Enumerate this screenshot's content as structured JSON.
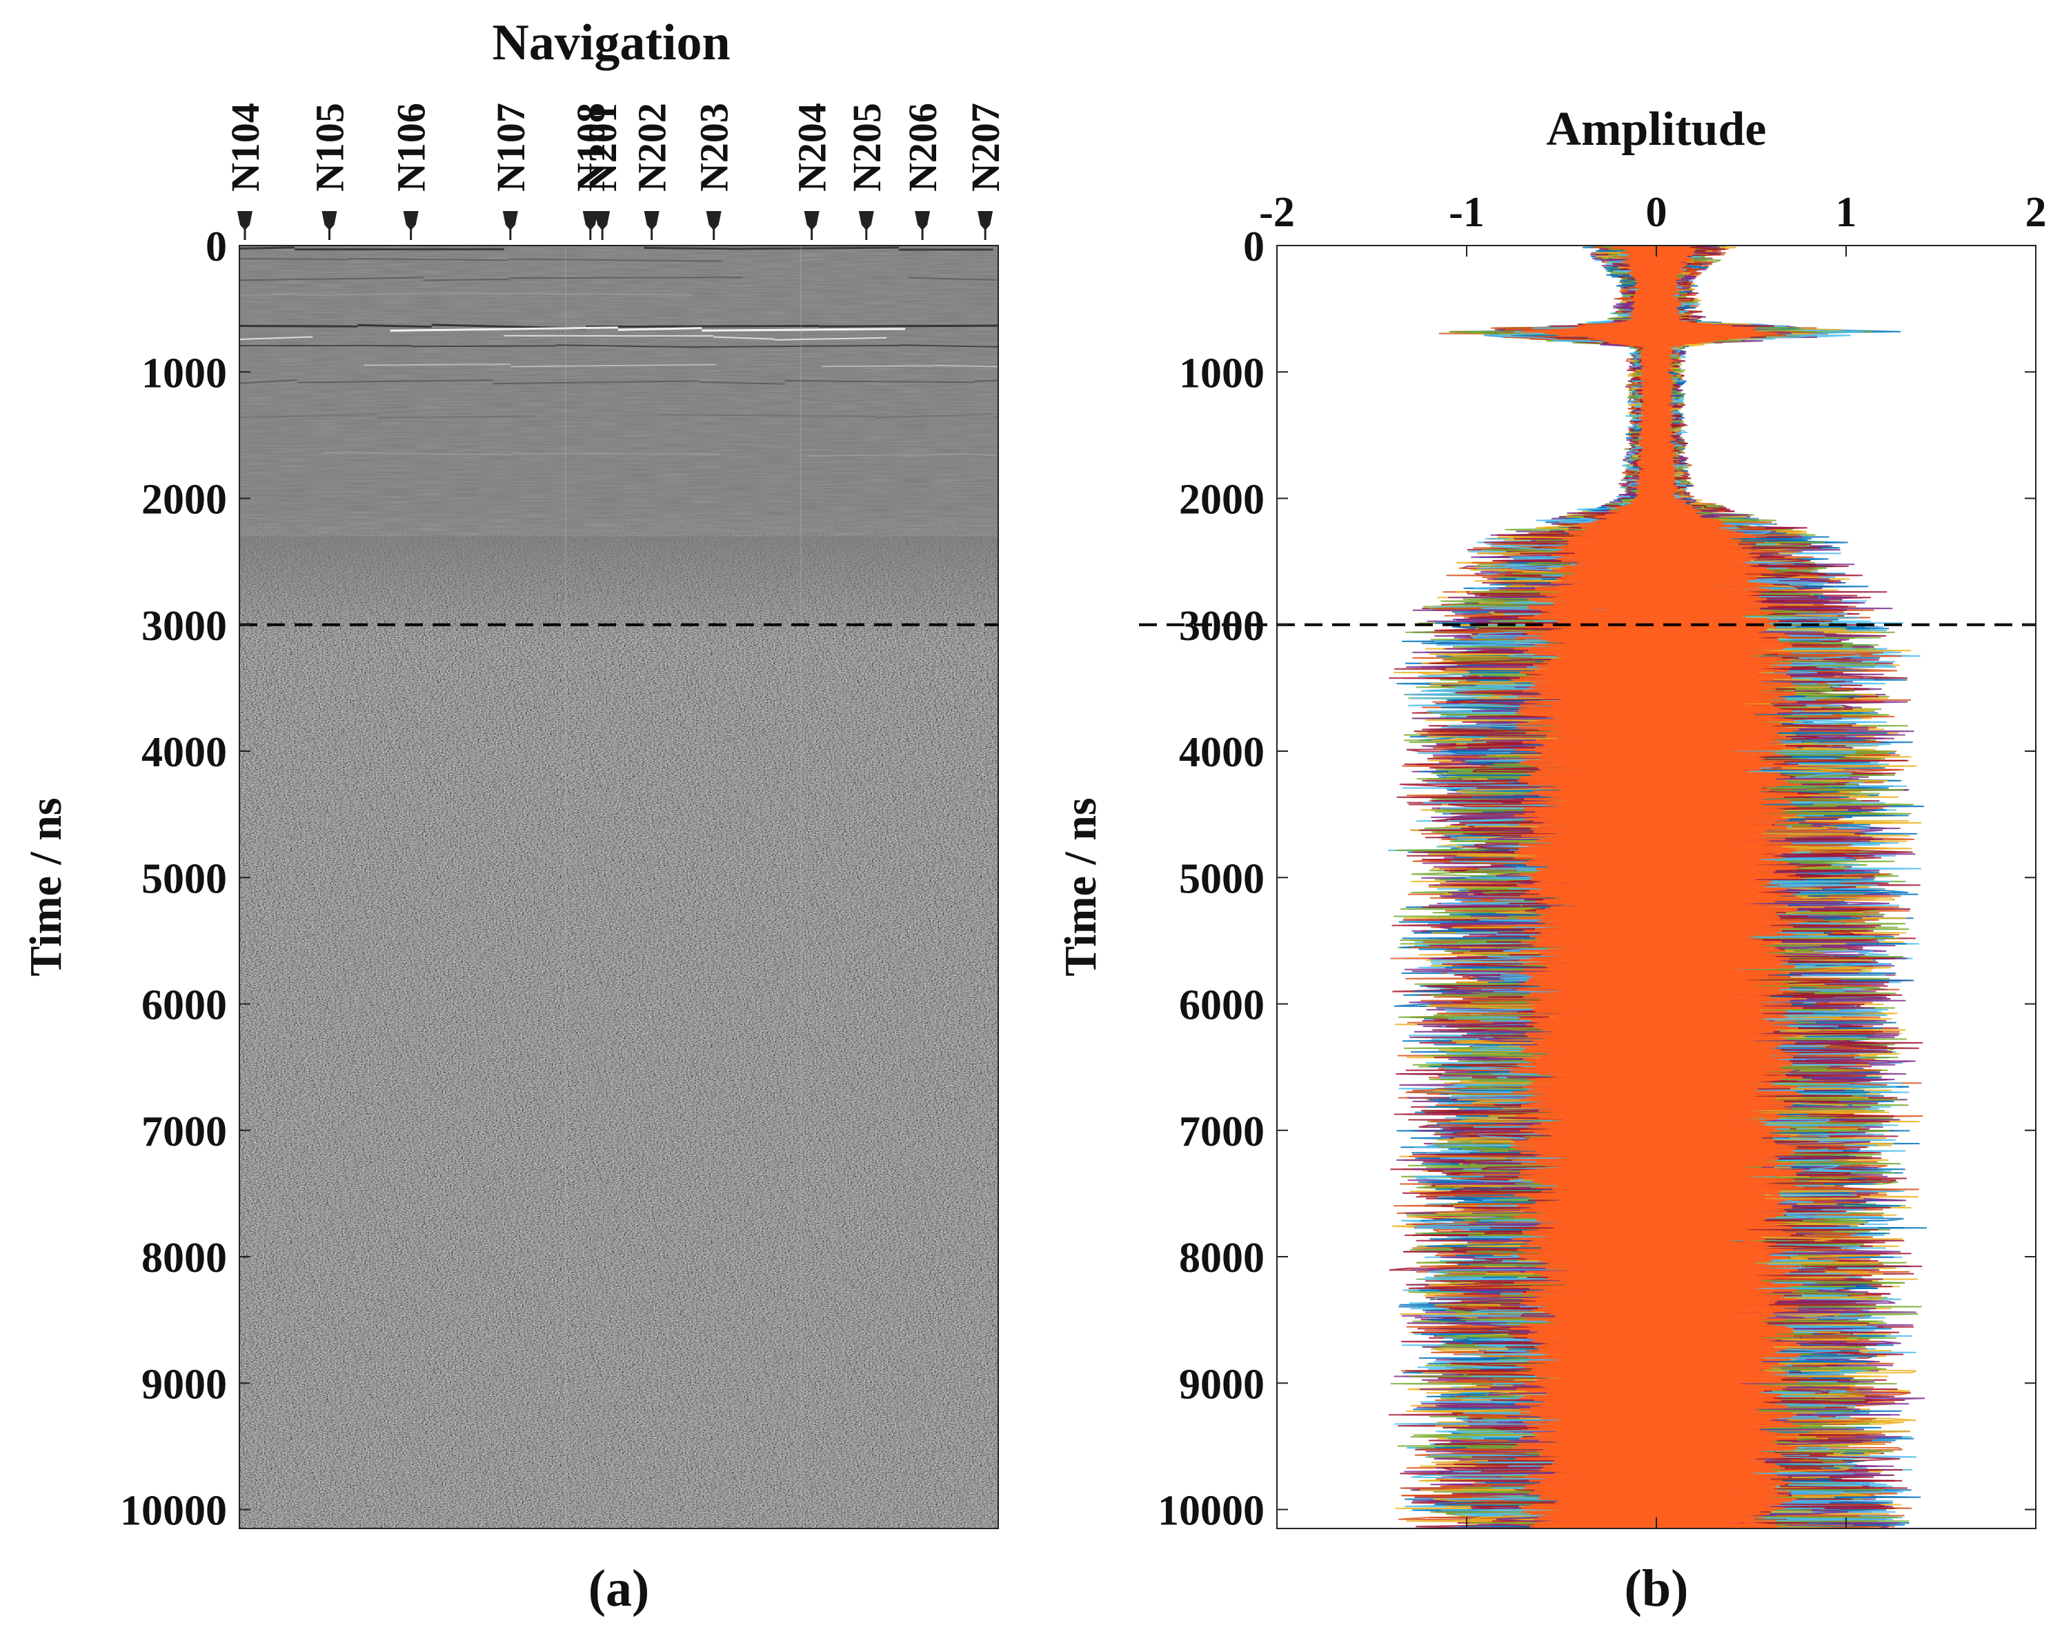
{
  "chart_data": [
    {
      "panel": "(a)",
      "type": "heatmap",
      "title": "Navigation",
      "xlabel": "",
      "ylabel": "Time / ns",
      "ylim": [
        0,
        10150
      ],
      "y_ticks": [
        0,
        1000,
        2000,
        3000,
        4000,
        5000,
        6000,
        7000,
        8000,
        9000,
        10000
      ],
      "navigation_points": [
        {
          "name": "N104",
          "pos": 0.0
        },
        {
          "name": "N105",
          "pos": 0.113
        },
        {
          "name": "N106",
          "pos": 0.222
        },
        {
          "name": "N107",
          "pos": 0.355
        },
        {
          "name": "N108",
          "pos": 0.462
        },
        {
          "name": "N201",
          "pos": 0.478
        },
        {
          "name": "N202",
          "pos": 0.544
        },
        {
          "name": "N203",
          "pos": 0.627
        },
        {
          "name": "N204",
          "pos": 0.758
        },
        {
          "name": "N205",
          "pos": 0.831
        },
        {
          "name": "N206",
          "pos": 0.906
        },
        {
          "name": "N207",
          "pos": 0.99
        }
      ],
      "dashed_line_y": 3000,
      "colormap": "grayscale",
      "description_regions": [
        {
          "from": 0,
          "to": 2200,
          "texture": "smooth gray with horizontal banding"
        },
        {
          "from": 2200,
          "to": 10150,
          "texture": "dense random noise"
        }
      ]
    },
    {
      "panel": "(b)",
      "type": "line",
      "title": "Amplitude",
      "xlabel": "Amplitude",
      "ylabel": "Time / ns",
      "xlim": [
        -2,
        2
      ],
      "ylim": [
        0,
        10150
      ],
      "x_ticks": [
        -2,
        -1,
        0,
        1,
        2
      ],
      "y_ticks": [
        0,
        1000,
        2000,
        3000,
        4000,
        5000,
        6000,
        7000,
        8000,
        9000,
        10000
      ],
      "dashed_line_y": 3000,
      "series_colors": [
        "#0072BD",
        "#D95319",
        "#EDB120",
        "#7E2F8E",
        "#77AC30",
        "#4DBEEE",
        "#A2142F"
      ],
      "foreground_color": "#FF5F1F",
      "amplitude_envelope": [
        {
          "t": 0,
          "amp": 0.4
        },
        {
          "t": 300,
          "amp": 0.2
        },
        {
          "t": 600,
          "amp": 0.25
        },
        {
          "t": 680,
          "amp": 1.3
        },
        {
          "t": 800,
          "amp": 0.15
        },
        {
          "t": 1500,
          "amp": 0.15
        },
        {
          "t": 2000,
          "amp": 0.2
        },
        {
          "t": 2300,
          "amp": 0.9
        },
        {
          "t": 2600,
          "amp": 1.05
        },
        {
          "t": 3000,
          "amp": 1.25
        },
        {
          "t": 3500,
          "amp": 1.3
        },
        {
          "t": 5000,
          "amp": 1.3
        },
        {
          "t": 7000,
          "amp": 1.3
        },
        {
          "t": 9000,
          "amp": 1.3
        },
        {
          "t": 10150,
          "amp": 1.3
        }
      ]
    }
  ],
  "captions": {
    "a": "(a)",
    "b": "(b)"
  }
}
